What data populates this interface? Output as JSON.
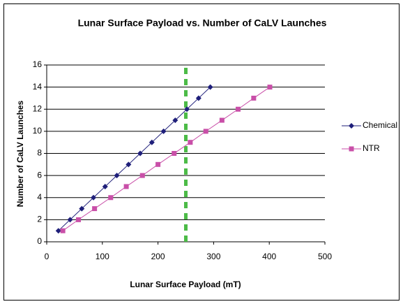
{
  "chart_data": {
    "type": "line",
    "title": "Lunar Surface Payload vs. Number of CaLV Launches",
    "x_label": "Lunar Surface Payload (mT)",
    "y_label": "Number of CaLV Launches",
    "series": [
      {
        "name": "Chemical",
        "color": "#1f1f7a",
        "marker": "diamond",
        "x": [
          21,
          42,
          63,
          84,
          105,
          126,
          147,
          168,
          189,
          210,
          231,
          252,
          273,
          294
        ],
        "values": [
          1,
          2,
          3,
          4,
          5,
          6,
          7,
          8,
          9,
          10,
          11,
          12,
          13,
          14
        ]
      },
      {
        "name": "NTR",
        "color": "#c94fa8",
        "marker": "square",
        "x": [
          29,
          57,
          86,
          115,
          143,
          172,
          200,
          229,
          258,
          286,
          315,
          344,
          372,
          401
        ],
        "values": [
          1,
          2,
          3,
          4,
          5,
          6,
          7,
          8,
          9,
          10,
          11,
          12,
          13,
          14
        ]
      }
    ],
    "vline": {
      "x": 250,
      "color": "#4cbb47"
    },
    "xlim": [
      0,
      500
    ],
    "xticks": [
      0,
      100,
      200,
      300,
      400,
      500
    ],
    "ylim": [
      0,
      16
    ],
    "yticks": [
      0,
      2,
      4,
      6,
      8,
      10,
      12,
      14,
      16
    ],
    "grid": true,
    "legend": "right"
  }
}
